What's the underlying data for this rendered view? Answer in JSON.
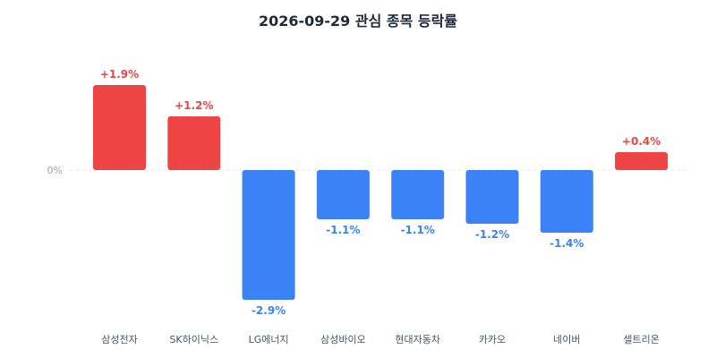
{
  "chart_data": {
    "type": "bar",
    "title": "2026-09-29 관심 종목 등락률",
    "categories": [
      "삼성전자",
      "SK하이닉스",
      "LG에너지",
      "삼성바이오",
      "현대자동차",
      "카카오",
      "네이버",
      "셀트리온"
    ],
    "values": [
      1.9,
      1.2,
      -2.9,
      -1.1,
      -1.1,
      -1.2,
      -1.4,
      0.4
    ],
    "value_labels": [
      "+1.9%",
      "+1.2%",
      "-2.9%",
      "-1.1%",
      "-1.1%",
      "-1.2%",
      "-1.4%",
      "+0.4%"
    ],
    "zero_label": "0%",
    "xlabel": "",
    "ylabel": "",
    "grid": false,
    "legend": "none",
    "colors": {
      "positive": "#ef4444",
      "negative": "#3b82f6",
      "zero_line": "#e5e7eb",
      "text": "#374151",
      "muted": "#9ca3af"
    }
  }
}
